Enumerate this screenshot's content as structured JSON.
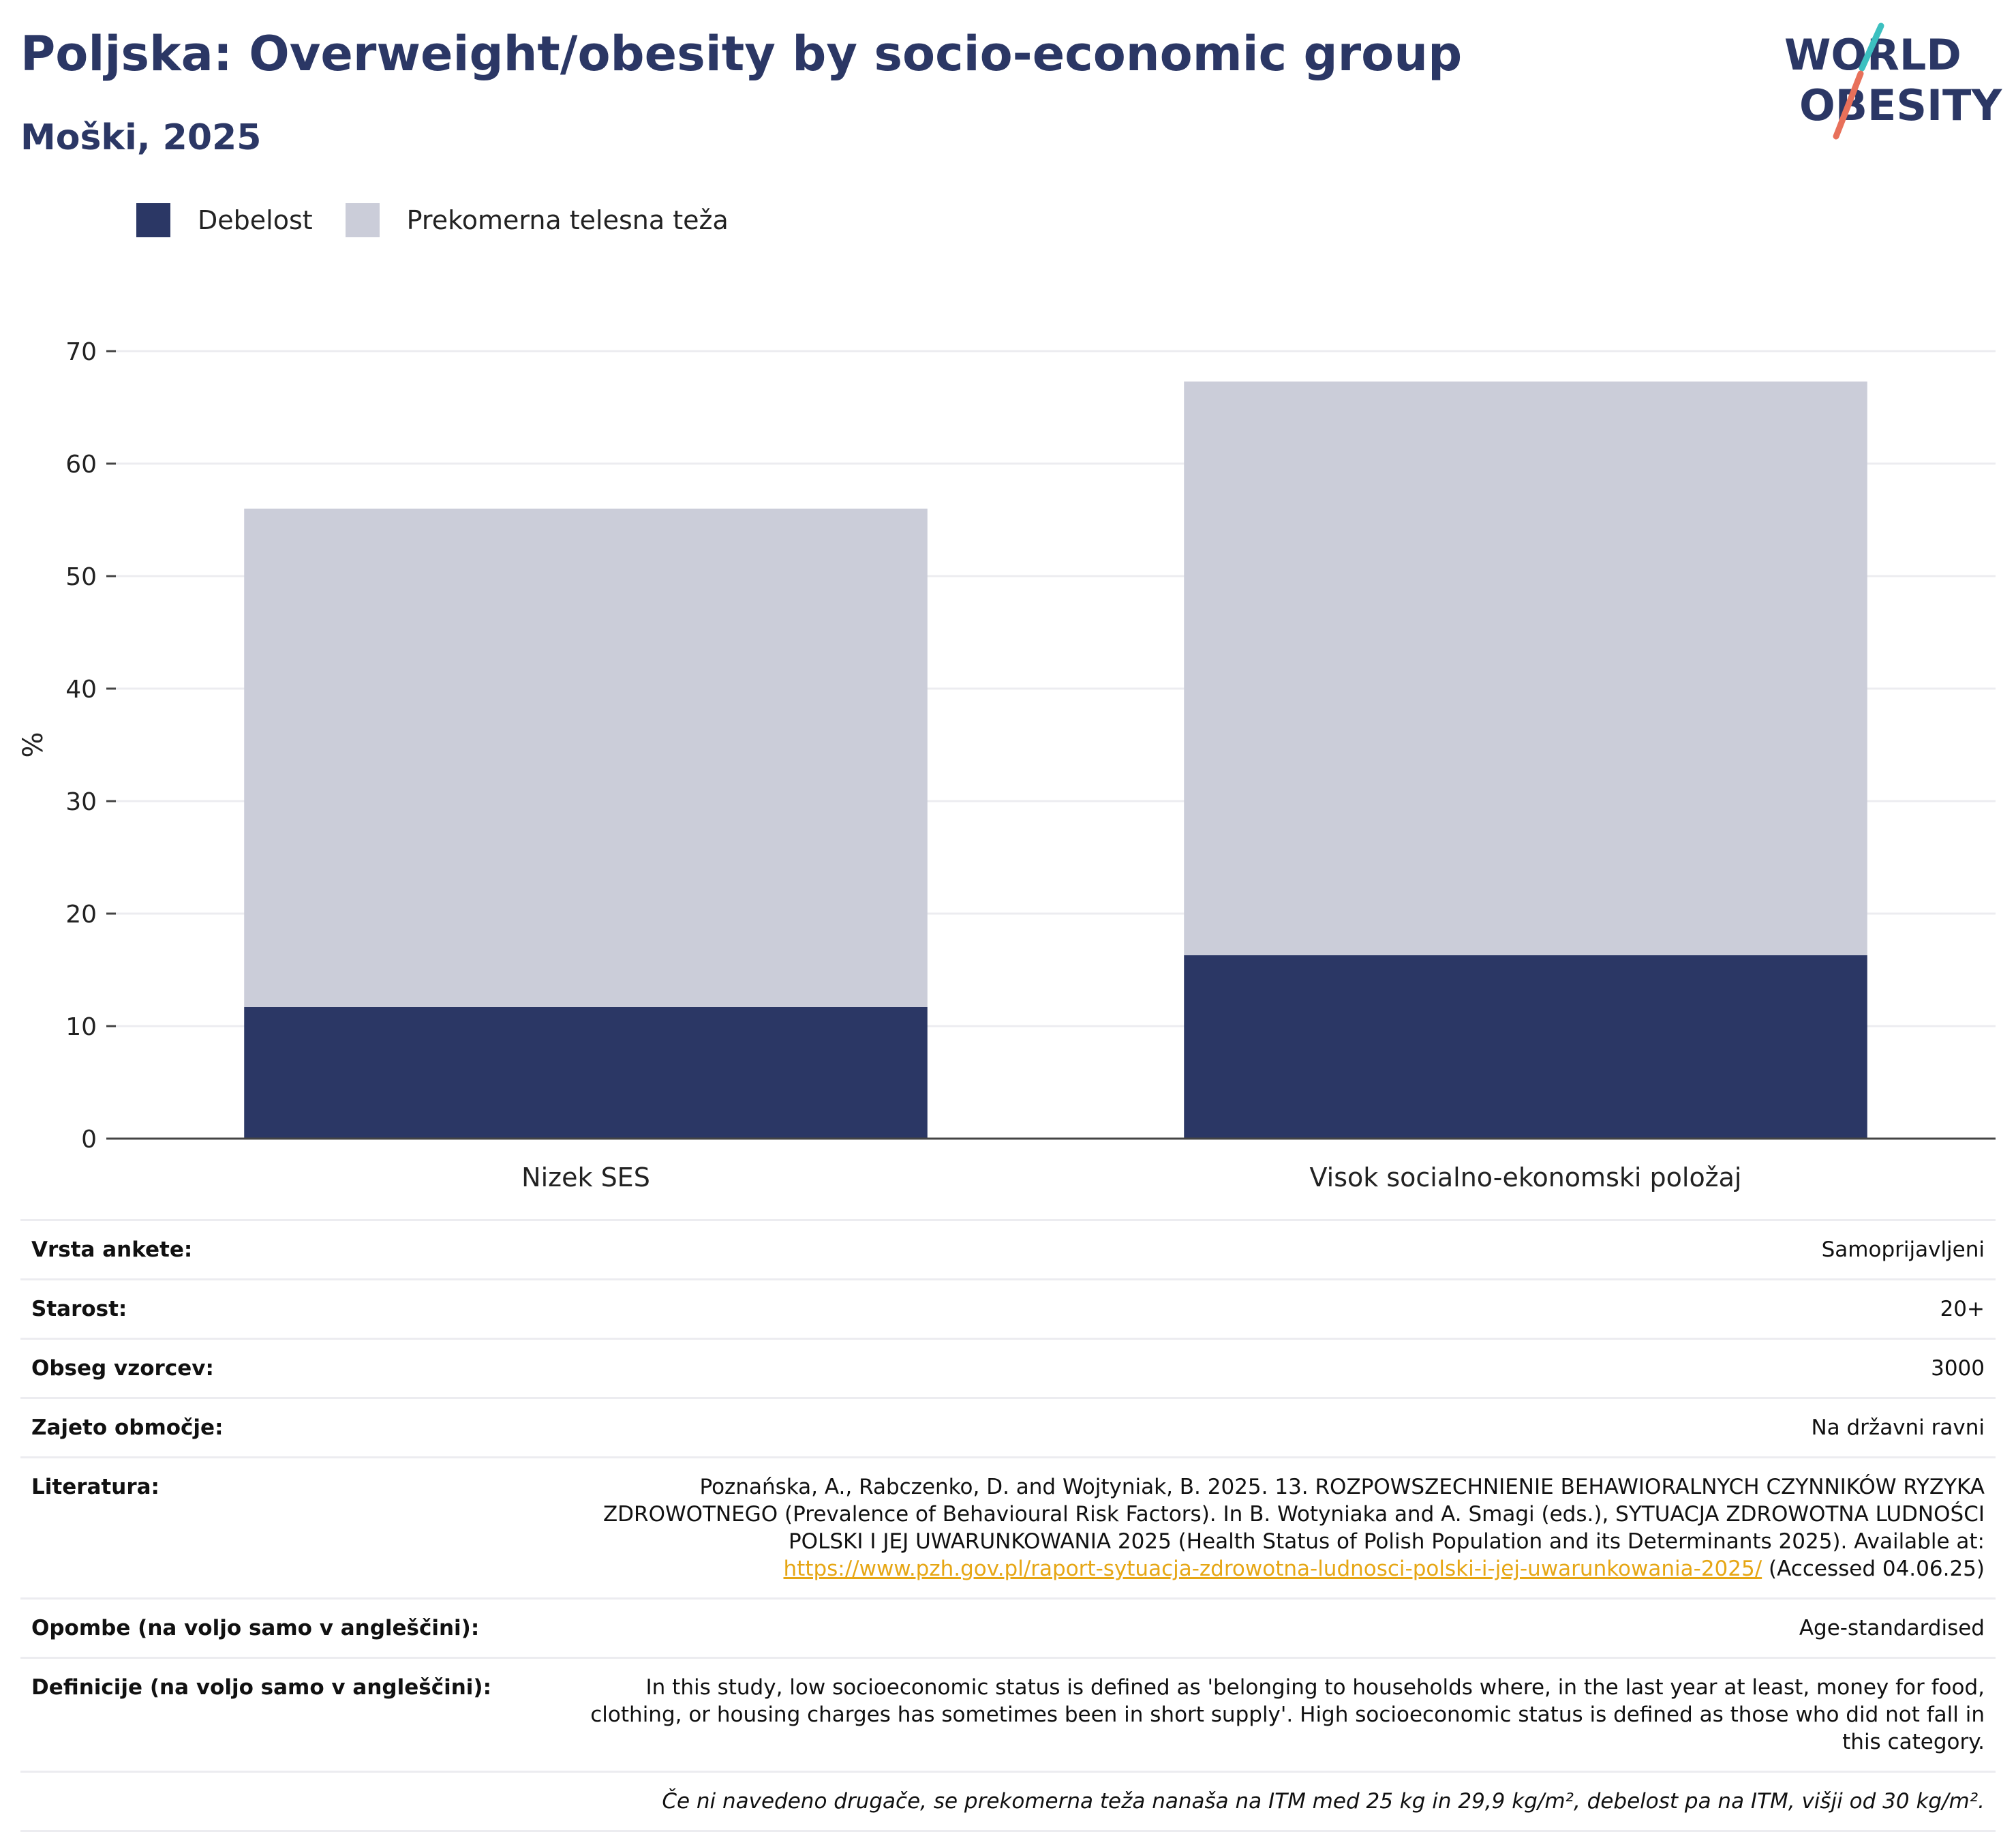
{
  "header": {
    "title": "Poljska: Overweight/obesity by socio-economic group",
    "subtitle": "Moški, 2025"
  },
  "logo": {
    "line1": "WORLD",
    "line2": "OBESITY",
    "accent_colors": [
      "#3cc0c0",
      "#e8705a"
    ],
    "text_color": "#2b3765"
  },
  "legend": {
    "items": [
      {
        "label": "Debelost",
        "color": "#2b3765"
      },
      {
        "label": "Prekomerna telesna teža",
        "color": "#cbcdd9"
      }
    ]
  },
  "chart_data": {
    "type": "bar",
    "stacked": true,
    "categories": [
      "Nizek SES",
      "Visok socialno-ekonomski položaj"
    ],
    "series": [
      {
        "name": "Debelost",
        "color": "#2b3765",
        "values": [
          11.7,
          16.3
        ]
      },
      {
        "name": "Prekomerna telesna teža",
        "color": "#cbcdd9",
        "values": [
          44.3,
          51.0
        ]
      }
    ],
    "ylabel": "%",
    "ylim": [
      0,
      70
    ],
    "yticks": [
      0,
      10,
      20,
      30,
      40,
      50,
      60,
      70
    ],
    "grid": true,
    "legend_position": "top-left"
  },
  "info": {
    "rows": [
      {
        "label": "Vrsta ankete:",
        "value": "Samoprijavljeni"
      },
      {
        "label": "Starost:",
        "value": "20+"
      },
      {
        "label": "Obseg vzorcev:",
        "value": "3000"
      },
      {
        "label": "Zajeto območje:",
        "value": "Na državni ravni"
      }
    ],
    "literature": {
      "label": "Literatura:",
      "text": "Poznańska, A., Rabczenko, D. and Wojtyniak, B. 2025. 13. ROZPOWSZECHNIENIE BEHAWIORALNYCH CZYNNIKÓW RYZYKA ZDROWOTNEGO (Prevalence of Behavioural Risk Factors). In B. Wotyniaka and A. Smagi (eds.), SYTUACJA ZDROWOTNA LUDNOŚCI POLSKI I JEJ UWARUNKOWANIA 2025 (Health Status of Polish Population and its Determinants 2025). Available at: ",
      "link": "https://www.pzh.gov.pl/raport-sytuacja-zdrowotna-ludnosci-polski-i-jej-uwarunkowania-2025/",
      "suffix": " (Accessed 04.06.25)"
    },
    "notes": {
      "label": "Opombe (na voljo samo v angleščini):",
      "value": "Age-standardised"
    },
    "definitions": {
      "label": "Definicije (na voljo samo v angleščini):",
      "value": "In this study, low socioeconomic status is defined as 'belonging to households where, in the last year at least, money for food, clothing, or housing charges has sometimes been in short supply'. High socioeconomic status is defined as those who did not fall in this category."
    },
    "footnote": "Če ni navedeno drugače, se prekomerna teža nanaša na ITM med 25 kg in 29,9 kg/m², debelost pa na ITM, višji od 30 kg/m²."
  }
}
